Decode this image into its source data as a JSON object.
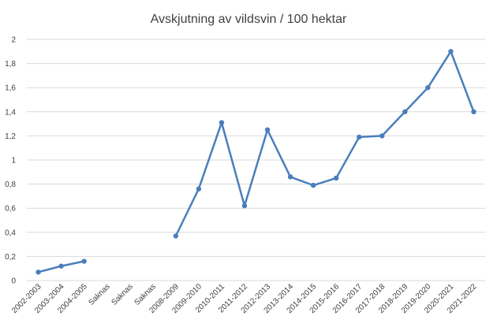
{
  "chart_data": {
    "type": "line",
    "title": "Avskjutning av vildsvin / 100 hektar",
    "xlabel": "",
    "ylabel": "",
    "ylim": [
      0,
      2
    ],
    "yticks": [
      0,
      0.2,
      0.4,
      0.6,
      0.8,
      1,
      1.2,
      1.4,
      1.6,
      1.8,
      2
    ],
    "ytick_labels": [
      "0",
      "0,2",
      "0,4",
      "0,6",
      "0,8",
      "1",
      "1,2",
      "1,4",
      "1,6",
      "1,8",
      "2"
    ],
    "grid": true,
    "legend": "none",
    "color": "#4a7ebb",
    "categories": [
      "2002-2003",
      "2003-2004",
      "2004-2005",
      "Saknas",
      "Saknas",
      "Saknas",
      "2008-2009",
      "2009-2010",
      "2010-2011",
      "2011-2012",
      "2012-2013",
      "2013-2014",
      "2014-2015",
      "2015-2016",
      "2016-2017",
      "2017-2018",
      "2018-2019",
      "2019-2020",
      "2020-2021",
      "2021-2022"
    ],
    "series": [
      {
        "values": [
          0.07,
          0.12,
          0.16,
          null,
          null,
          null,
          0.37,
          0.76,
          1.31,
          0.62,
          1.25,
          0.86,
          0.79,
          0.85,
          1.19,
          1.2,
          1.4,
          1.6,
          1.9,
          1.4
        ]
      }
    ]
  }
}
